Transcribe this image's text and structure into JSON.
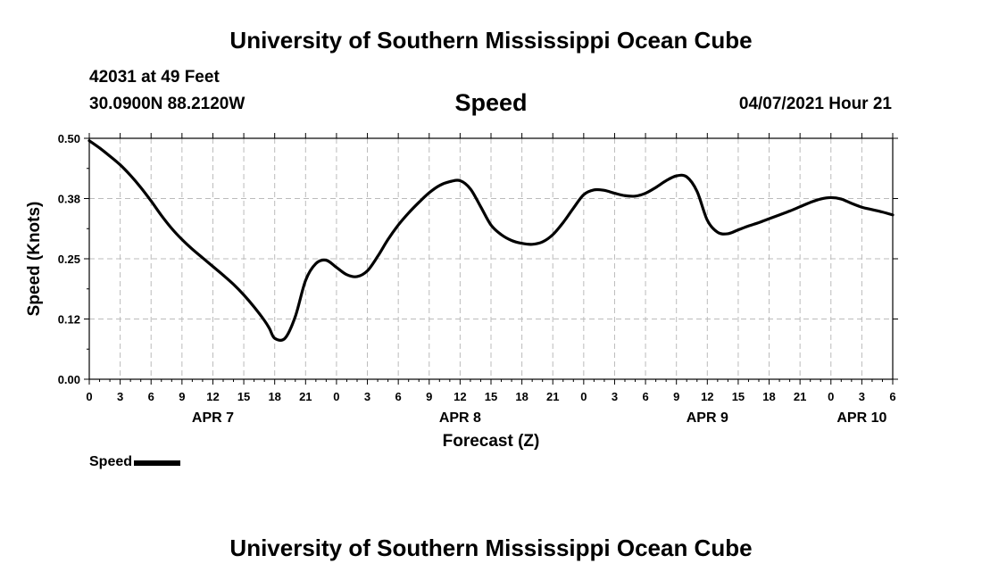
{
  "header": {
    "title": "University of Southern Mississippi Ocean Cube",
    "station": "42031 at 49 Feet",
    "coordinates": "30.0900N  88.2120W",
    "variable": "Speed",
    "datetime": "04/07/2021 Hour 21"
  },
  "footer": {
    "title": "University of Southern Mississippi Ocean Cube"
  },
  "legend": {
    "label": "Speed"
  },
  "colors": {
    "line": "#000000",
    "grid": "#bbbbbb",
    "axis": "#000000"
  },
  "chart_data": {
    "type": "line",
    "title": "Speed",
    "xlabel": "Forecast (Z)",
    "ylabel": "Speed (Knots)",
    "xlim": [
      0,
      78
    ],
    "ylim": [
      0,
      0.5
    ],
    "y_ticks": [
      "0.00",
      "0.12",
      "0.25",
      "0.38",
      "0.50"
    ],
    "x_ticks": [
      "0",
      "3",
      "6",
      "9",
      "12",
      "15",
      "18",
      "21",
      "0",
      "3",
      "6",
      "9",
      "12",
      "15",
      "18",
      "21",
      "0",
      "3",
      "6",
      "9",
      "12",
      "15",
      "18",
      "21",
      "0",
      "3",
      "6"
    ],
    "x_tick_step_hours": 3,
    "day_labels": [
      {
        "label": "APR 7",
        "hour": 12
      },
      {
        "label": "APR 8",
        "hour": 36
      },
      {
        "label": "APR 9",
        "hour": 60
      },
      {
        "label": "APR 10",
        "hour": 75
      }
    ],
    "grid": true,
    "series": [
      {
        "name": "Speed",
        "x": [
          0,
          1,
          2,
          3,
          4,
          5,
          6,
          7,
          8,
          9,
          10,
          11,
          12,
          13,
          14,
          15,
          16,
          17,
          17.5,
          18,
          19,
          20,
          21,
          22,
          23,
          24,
          25,
          26,
          27,
          28,
          29,
          30,
          31,
          32,
          33,
          34,
          35,
          36,
          37,
          38,
          39,
          40,
          41,
          42,
          43,
          44,
          45,
          46,
          47,
          48,
          49,
          50,
          51,
          52,
          53,
          54,
          55,
          56,
          57,
          58,
          59,
          60,
          61,
          62,
          63,
          64,
          65,
          66,
          67,
          68,
          69,
          70,
          71,
          72,
          73,
          74,
          75,
          76,
          77,
          78
        ],
        "values": [
          0.495,
          0.48,
          0.463,
          0.445,
          0.423,
          0.398,
          0.37,
          0.34,
          0.313,
          0.29,
          0.27,
          0.252,
          0.234,
          0.216,
          0.197,
          0.175,
          0.15,
          0.122,
          0.105,
          0.085,
          0.085,
          0.13,
          0.205,
          0.24,
          0.247,
          0.232,
          0.217,
          0.213,
          0.225,
          0.255,
          0.29,
          0.32,
          0.345,
          0.367,
          0.387,
          0.402,
          0.41,
          0.412,
          0.395,
          0.358,
          0.32,
          0.3,
          0.288,
          0.282,
          0.28,
          0.285,
          0.3,
          0.325,
          0.355,
          0.383,
          0.393,
          0.392,
          0.386,
          0.381,
          0.38,
          0.386,
          0.398,
          0.412,
          0.422,
          0.42,
          0.39,
          0.33,
          0.305,
          0.302,
          0.31,
          0.318,
          0.325,
          0.333,
          0.341,
          0.349,
          0.358,
          0.367,
          0.374,
          0.377,
          0.374,
          0.365,
          0.357,
          0.352,
          0.347,
          0.341
        ]
      }
    ]
  }
}
